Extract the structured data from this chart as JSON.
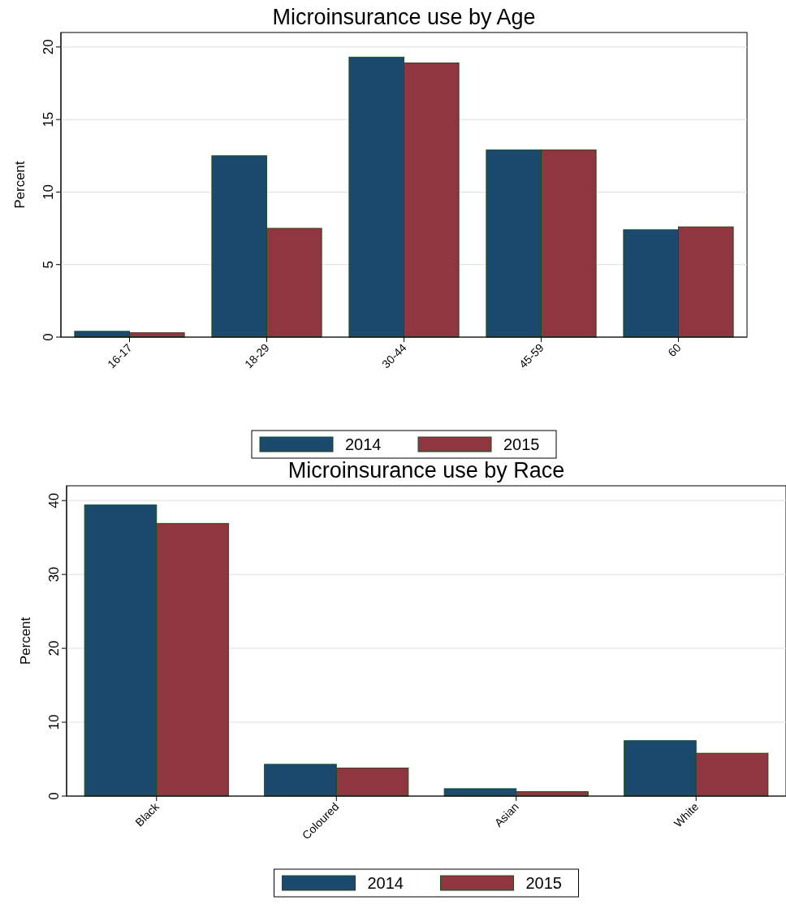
{
  "chart_data": [
    {
      "type": "bar",
      "title": "Microinsurance use by Age",
      "ylabel": "Percent",
      "categories": [
        "16-17",
        "18-29",
        "30-44",
        "45-59",
        "60"
      ],
      "ylim": [
        0,
        21
      ],
      "yticks": [
        0,
        5,
        10,
        15,
        20
      ],
      "grid": "y",
      "legend": "bottom",
      "series": [
        {
          "name": "2014",
          "color": "#1c4a6e",
          "values": [
            0.4,
            12.5,
            19.3,
            12.9,
            7.4
          ]
        },
        {
          "name": "2015",
          "color": "#903640",
          "values": [
            0.3,
            7.5,
            18.9,
            12.9,
            7.6
          ]
        }
      ]
    },
    {
      "type": "bar",
      "title": "Microinsurance use by Race",
      "ylabel": "Percent",
      "categories": [
        "Black",
        "Coloured",
        "Asian",
        "White"
      ],
      "ylim": [
        0,
        42
      ],
      "yticks": [
        0,
        10,
        20,
        30,
        40
      ],
      "grid": "y",
      "legend": "bottom",
      "series": [
        {
          "name": "2014",
          "color": "#1c4a6e",
          "values": [
            39.4,
            4.3,
            1.0,
            7.5
          ]
        },
        {
          "name": "2015",
          "color": "#903640",
          "values": [
            36.9,
            3.8,
            0.6,
            5.8
          ]
        }
      ]
    }
  ]
}
